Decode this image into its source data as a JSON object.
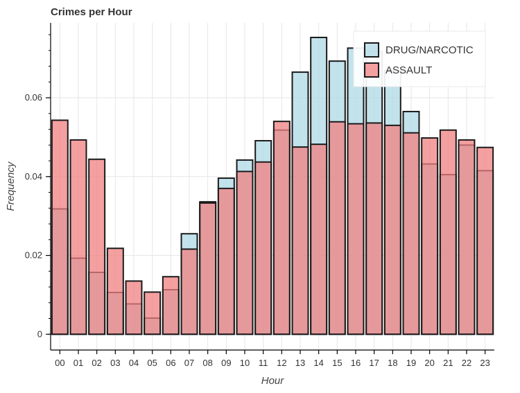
{
  "chart_data": {
    "type": "bar",
    "title": "Crimes per Hour",
    "xlabel": "Hour",
    "ylabel": "Frequency",
    "categories": [
      "00",
      "01",
      "02",
      "03",
      "04",
      "05",
      "06",
      "07",
      "08",
      "09",
      "10",
      "11",
      "12",
      "13",
      "14",
      "15",
      "16",
      "17",
      "18",
      "19",
      "20",
      "21",
      "22",
      "23"
    ],
    "ylim": [
      -0.004,
      0.079
    ],
    "yticks": [
      0,
      0.02,
      0.04,
      0.06
    ],
    "ytick_labels": [
      "0",
      "0.02",
      "0.04",
      "0.06"
    ],
    "grid": true,
    "legend_position": "top-right",
    "overlay": true,
    "series": [
      {
        "name": "DRUG/NARCOTIC",
        "color": "#add8e6",
        "values": [
          0.0318,
          0.0193,
          0.0157,
          0.0106,
          0.0077,
          0.0041,
          0.0113,
          0.0255,
          0.0336,
          0.0396,
          0.0442,
          0.0491,
          0.0518,
          0.0665,
          0.0753,
          0.0693,
          0.0726,
          0.0717,
          0.0669,
          0.0565,
          0.0432,
          0.0405,
          0.048,
          0.0415
        ]
      },
      {
        "name": "ASSAULT",
        "color": "#f08080",
        "values": [
          0.0543,
          0.0493,
          0.0444,
          0.0218,
          0.0135,
          0.0107,
          0.0146,
          0.0216,
          0.0333,
          0.037,
          0.0413,
          0.0437,
          0.054,
          0.0475,
          0.0482,
          0.0539,
          0.0534,
          0.0536,
          0.053,
          0.0511,
          0.0498,
          0.0518,
          0.0493,
          0.0474
        ]
      }
    ]
  }
}
